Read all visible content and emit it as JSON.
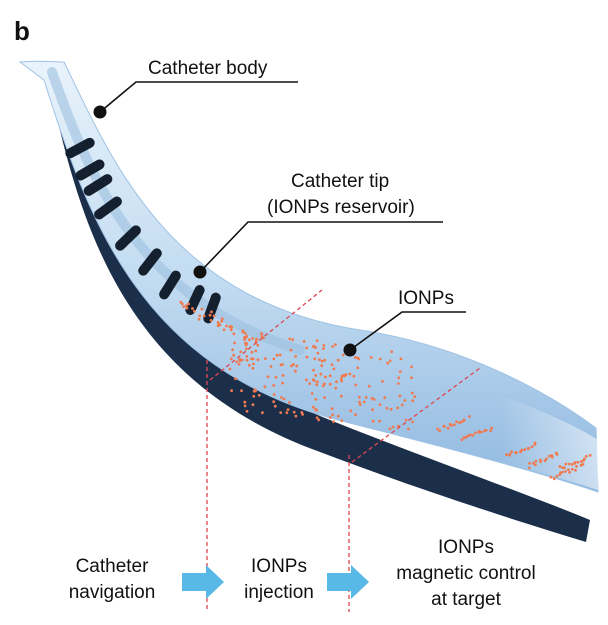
{
  "panel_label": "b",
  "callouts": {
    "catheter_body": "Catheter body",
    "catheter_tip_line1": "Catheter tip",
    "catheter_tip_line2": "(IONPs reservoir)",
    "ionps": "IONPs"
  },
  "steps": [
    {
      "line1": "Catheter",
      "line2": "navigation",
      "line3": ""
    },
    {
      "line1": "IONPs",
      "line2": "injection",
      "line3": ""
    },
    {
      "line1": "IONPs",
      "line2": "magnetic control",
      "line3": "at target"
    }
  ],
  "colors": {
    "catheter_light": "#d6e8f6",
    "catheter_mid": "#a9cbea",
    "catheter_edge": "#1c2f4a",
    "marker_band": "#15202f",
    "particles": "#f07a50",
    "guide_line": "#e0464f",
    "arrow": "#58b8e6"
  }
}
